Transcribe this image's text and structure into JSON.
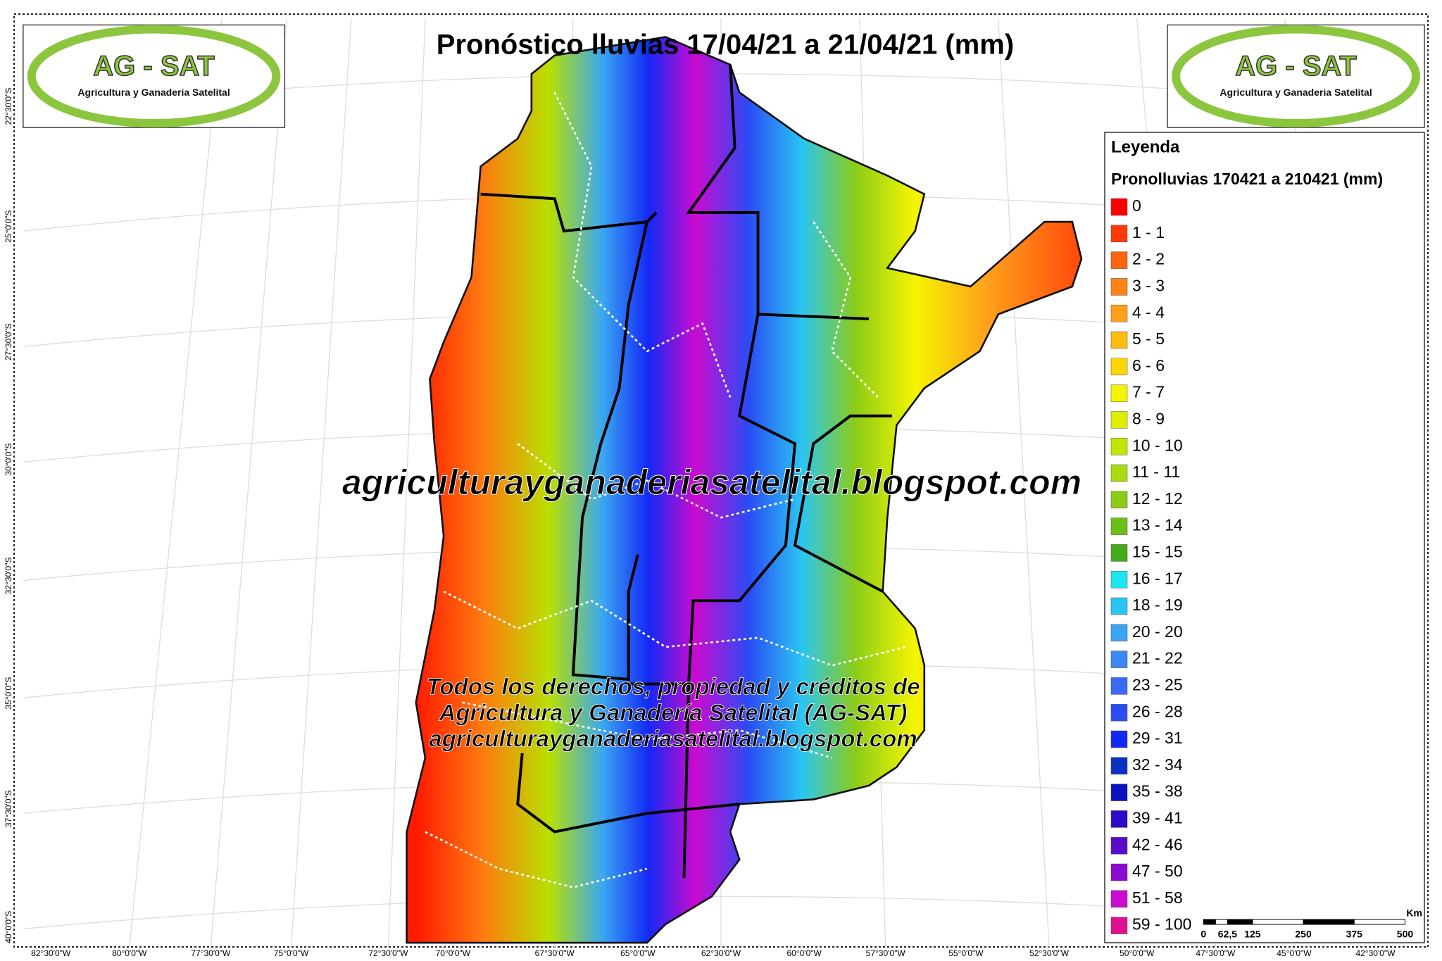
{
  "header": {
    "title": "Pronóstico lluvias 17/04/21 a 21/04/21 (mm)"
  },
  "logos": [
    {
      "name": "AG - SAT",
      "tagline": "Agricultura y Ganaderia Satelital"
    },
    {
      "name": "AG - SAT",
      "tagline": "Agricultura y Ganaderia Satelital"
    }
  ],
  "legend": {
    "title": "Leyenda",
    "subtitle": "Pronolluvias 170421 a 210421 (mm)",
    "items": [
      {
        "label": "0",
        "color": "#ff0000"
      },
      {
        "label": "1 - 1",
        "color": "#ff3a0a"
      },
      {
        "label": "2 - 2",
        "color": "#ff6410"
      },
      {
        "label": "3 - 3",
        "color": "#ff8418"
      },
      {
        "label": "4 - 4",
        "color": "#ffa01c"
      },
      {
        "label": "5 - 5",
        "color": "#ffbc10"
      },
      {
        "label": "6 - 6",
        "color": "#ffd700"
      },
      {
        "label": "7 - 7",
        "color": "#f5f500"
      },
      {
        "label": "8 - 9",
        "color": "#dcef00"
      },
      {
        "label": "10 - 10",
        "color": "#c3e600"
      },
      {
        "label": "11 - 11",
        "color": "#a8dc10"
      },
      {
        "label": "12 - 12",
        "color": "#8ccc18"
      },
      {
        "label": "13 - 14",
        "color": "#6cbe18"
      },
      {
        "label": "15 - 15",
        "color": "#44aa18"
      },
      {
        "label": "16 - 17",
        "color": "#1ee6f0"
      },
      {
        "label": "18 - 19",
        "color": "#2ac6f2"
      },
      {
        "label": "20 - 20",
        "color": "#38a6f2"
      },
      {
        "label": "21 - 22",
        "color": "#3c88f2"
      },
      {
        "label": "23 - 25",
        "color": "#386af5"
      },
      {
        "label": "26 - 28",
        "color": "#2a4cf5"
      },
      {
        "label": "29 - 31",
        "color": "#1428f5"
      },
      {
        "label": "32 - 34",
        "color": "#0a32c0"
      },
      {
        "label": "35 - 38",
        "color": "#0a12c0"
      },
      {
        "label": "39 - 41",
        "color": "#2c0ac8"
      },
      {
        "label": "42 - 46",
        "color": "#5a0ac8"
      },
      {
        "label": "47 - 50",
        "color": "#8a0ad0"
      },
      {
        "label": "51 - 58",
        "color": "#cc0ad0"
      },
      {
        "label": "59 - 100",
        "color": "#dc1090"
      }
    ]
  },
  "watermark": "agriculturayganaderiasatelital.blogspot.com",
  "credits": [
    "Todos los derechos, propiedad y créditos de",
    "Agricultura y Ganadería Satelital (AG-SAT)",
    "agriculturayganaderiasatelital.blogspot.com"
  ],
  "latitude_labels": [
    "22°30'0\"S",
    "25°0'0\"S",
    "27°30'0\"S",
    "30°0'0\"S",
    "32°30'0\"S",
    "35°0'0\"S",
    "37°30'0\"S",
    "40°0'0\"S"
  ],
  "longitude_labels": [
    "82°30'0\"W",
    "80°0'0\"W",
    "77°30'0\"W",
    "75°0'0\"W",
    "72°30'0\"W",
    "70°0'0\"W",
    "67°30'0\"W",
    "65°0'0\"W",
    "62°30'0\"W",
    "60°0'0\"W",
    "57°30'0\"W",
    "55°0'0\"W",
    "52°30'0\"W",
    "50°0'0\"W",
    "47°30'0\"W",
    "45°0'0\"W",
    "42°30'0\"W"
  ],
  "scale_bar": {
    "unit": "Km",
    "labels": [
      "0",
      "62,5",
      "125",
      "250",
      "375",
      "500"
    ]
  }
}
